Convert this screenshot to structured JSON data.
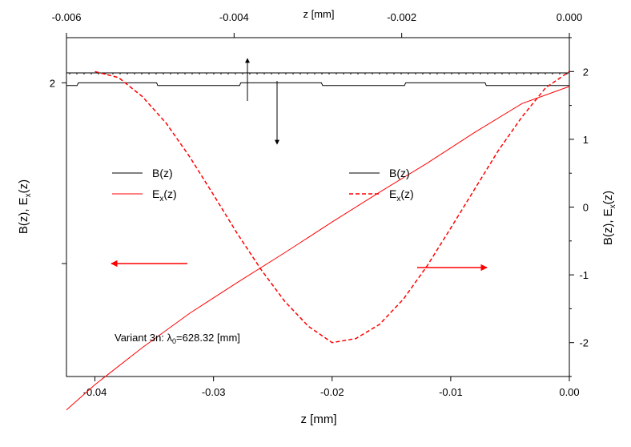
{
  "colors": {
    "black": "#000000",
    "red": "#ff0000"
  },
  "chart_data": {
    "type": "line",
    "axes": {
      "bottom": {
        "label": "z [mm]",
        "range": [
          -0.0424,
          0.0
        ],
        "ticks": [
          "-0.04",
          "-0.03",
          "-0.02",
          "-0.01",
          "0.00"
        ],
        "tick_values": [
          -0.04,
          -0.03,
          -0.02,
          -0.01,
          0.0
        ]
      },
      "top": {
        "label": "z [mm]",
        "range": [
          -0.006,
          0.0
        ],
        "ticks": [
          "-0.006",
          "-0.004",
          "-0.002",
          "0.000"
        ],
        "tick_values": [
          -0.006,
          -0.004,
          -0.002,
          0.0
        ]
      },
      "left": {
        "label_main": "B(z), E",
        "label_sub": "x",
        "label_tail": "(z)",
        "range": [
          -1.25,
          2.5
        ],
        "ticks": [
          "2"
        ],
        "tick_values": [
          2
        ],
        "minor_tick_values": [
          0
        ]
      },
      "right": {
        "label_main": "B(z), E",
        "label_sub": "x",
        "label_tail": "(z)",
        "range": [
          -2.5,
          2.5
        ],
        "ticks": [
          "2",
          "1",
          "0",
          "-1",
          "-2"
        ],
        "tick_values": [
          2,
          1,
          0,
          -1,
          -2
        ]
      }
    },
    "series": [
      {
        "axes": "bottom-left",
        "color": "#000000",
        "style": "solid",
        "kind": "B-bottom",
        "x": [
          -0.0424,
          -0.0415,
          -0.0414,
          -0.0348,
          -0.0347,
          -0.0278,
          -0.0277,
          -0.0209,
          -0.0208,
          -0.0139,
          -0.0138,
          -0.0071,
          -0.007,
          0.0
        ],
        "y": [
          1.97,
          1.97,
          2.0,
          2.0,
          1.97,
          1.97,
          2.0,
          2.0,
          1.97,
          1.97,
          2.0,
          2.0,
          1.97,
          1.97
        ]
      },
      {
        "axes": "bottom-left",
        "color": "#ff0000",
        "style": "solid",
        "kind": "Ex-bottom",
        "x": [
          -0.0424,
          -0.04,
          -0.036,
          -0.032,
          -0.028,
          -0.024,
          -0.02,
          -0.016,
          -0.012,
          -0.008,
          -0.004,
          0.0
        ],
        "y": [
          -1.62,
          -1.34,
          -0.93,
          -0.55,
          -0.21,
          0.12,
          0.46,
          0.79,
          1.11,
          1.45,
          1.77,
          1.96
        ]
      },
      {
        "axes": "top-right",
        "color": "#000000",
        "style": "solid",
        "kind": "B-top",
        "x": [
          -0.006,
          0.0
        ],
        "y": [
          1.98,
          1.98
        ]
      },
      {
        "axes": "bottom-right",
        "color": "#ff0000",
        "style": "dashed",
        "kind": "Ex-top",
        "x": [
          -0.04,
          -0.038,
          -0.036,
          -0.034,
          -0.032,
          -0.03,
          -0.028,
          -0.026,
          -0.024,
          -0.022,
          -0.02,
          -0.018,
          -0.016,
          -0.014,
          -0.012,
          -0.01,
          -0.008,
          -0.006,
          -0.004,
          -0.002,
          0.0
        ],
        "y": [
          2.0,
          1.91,
          1.63,
          1.24,
          0.74,
          0.18,
          -0.39,
          -0.92,
          -1.39,
          -1.76,
          -2.0,
          -1.94,
          -1.73,
          -1.36,
          -0.87,
          -0.31,
          0.26,
          0.83,
          1.33,
          1.76,
          2.0
        ]
      }
    ],
    "legends": [
      {
        "position": "left",
        "entries": [
          {
            "main": "B(z)",
            "sub": "",
            "tail": "",
            "color": "#000000",
            "style": "solid"
          },
          {
            "main": "E",
            "sub": "x",
            "tail": "(z)",
            "color": "#ff0000",
            "style": "solid"
          }
        ]
      },
      {
        "position": "right",
        "entries": [
          {
            "main": "B(z)",
            "sub": "",
            "tail": "",
            "color": "#000000",
            "style": "solid"
          },
          {
            "main": "E",
            "sub": "x",
            "tail": "(z)",
            "color": "#ff0000",
            "style": "dashed"
          }
        ]
      }
    ],
    "annotation": {
      "pre": "Variant 3n: ",
      "lambda": "λ",
      "sub": "0",
      "post": "=628.32 [mm]"
    }
  }
}
